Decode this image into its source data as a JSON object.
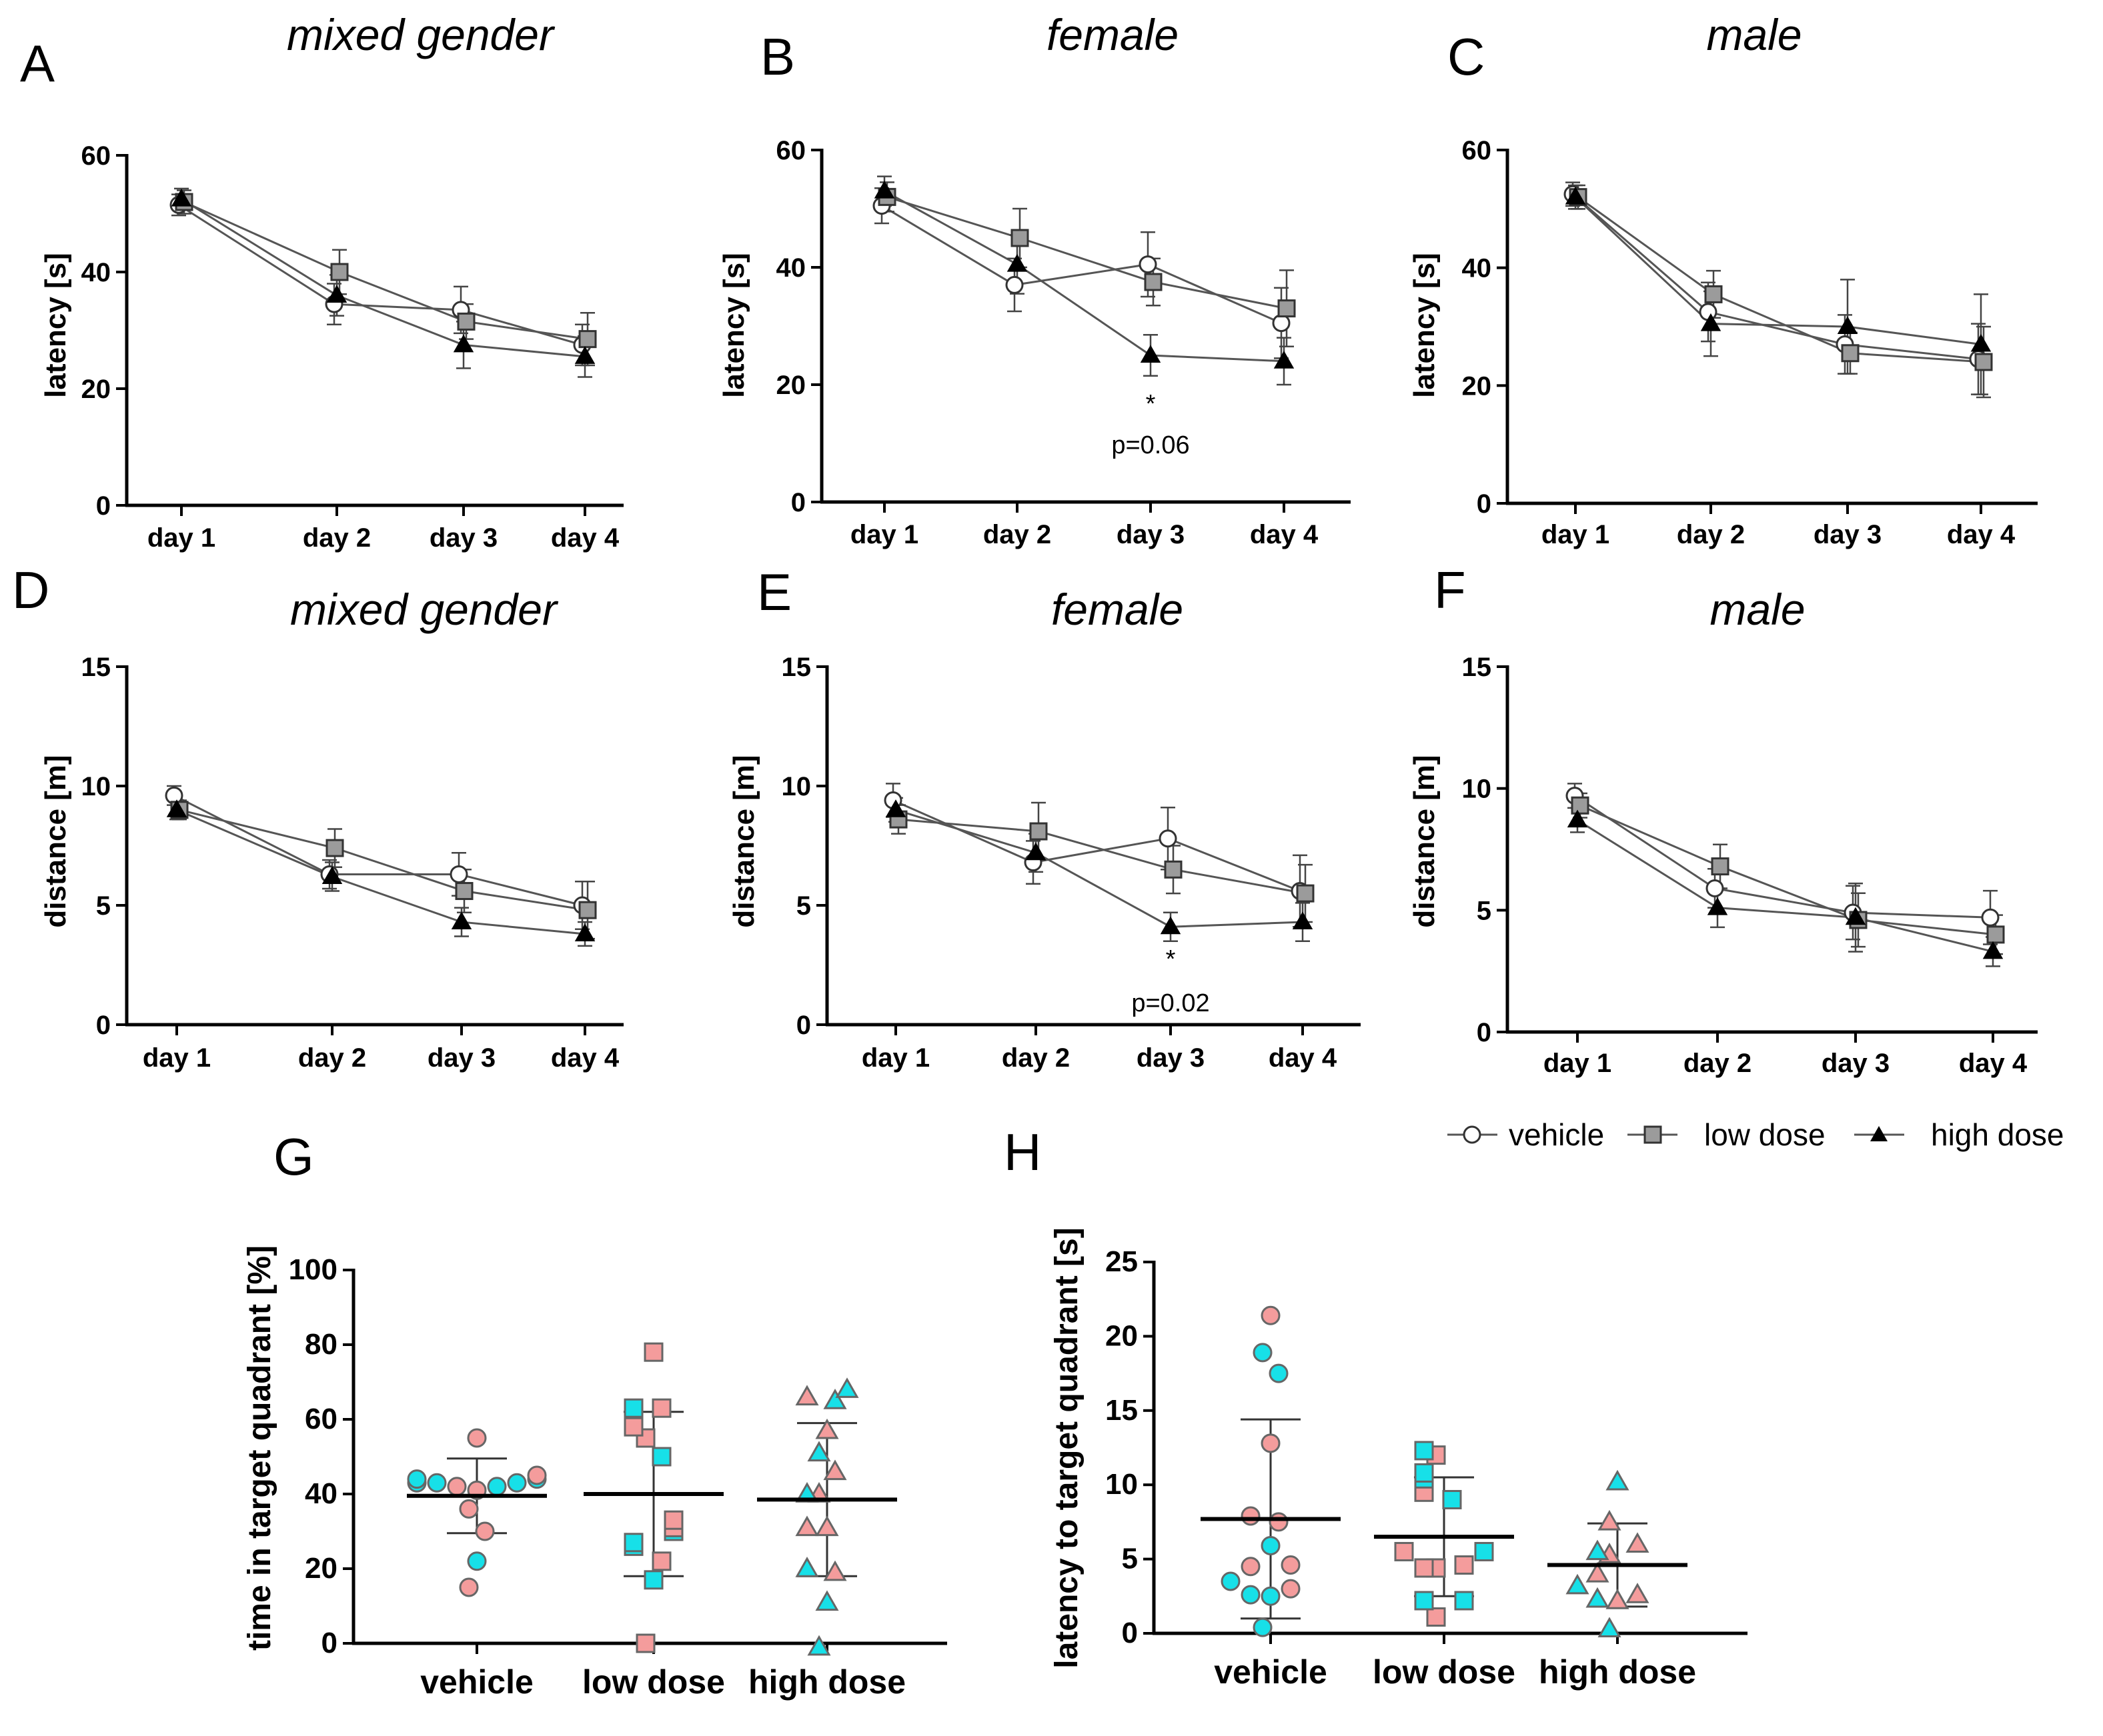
{
  "colors": {
    "vehicle_fill": "#ffffff",
    "low_fill": "#9b9b9b",
    "high_fill": "#000000",
    "line": "#555555",
    "female_fill": "#f49c9c",
    "male_fill": "#17e0e8"
  },
  "legend": {
    "vehicle": "vehicle",
    "low": "low dose",
    "high": "high dose"
  },
  "chart_data": [
    {
      "id": "A",
      "letter": "A",
      "type": "line",
      "title": "mixed gender",
      "xlabel": "",
      "ylabel": "latency [s]",
      "ylim": [
        0,
        60
      ],
      "yticks": [
        0,
        20,
        40,
        60
      ],
      "categories": [
        "day 1",
        "day 2",
        "day 3",
        "day 4"
      ],
      "series": [
        {
          "name": "vehicle",
          "values": [
            51.5,
            34.5,
            33.5,
            27.5
          ],
          "err": [
            1.8,
            3.5,
            4.0,
            3.5
          ]
        },
        {
          "name": "low dose",
          "values": [
            52.0,
            40.0,
            31.5,
            28.5
          ],
          "err": [
            2.0,
            3.8,
            3.0,
            4.5
          ]
        },
        {
          "name": "high dose",
          "values": [
            52.5,
            36.0,
            27.5,
            25.5
          ],
          "err": [
            1.8,
            3.5,
            4.0,
            3.5
          ]
        }
      ],
      "annotations": []
    },
    {
      "id": "B",
      "letter": "B",
      "type": "line",
      "title": "female",
      "xlabel": "",
      "ylabel": "latency [s]",
      "ylim": [
        0,
        60
      ],
      "yticks": [
        0,
        20,
        40,
        60
      ],
      "categories": [
        "day 1",
        "day 2",
        "day 3",
        "day 4"
      ],
      "series": [
        {
          "name": "vehicle",
          "values": [
            50.5,
            37.0,
            40.5,
            30.5
          ],
          "err": [
            3.0,
            4.5,
            5.5,
            6.0
          ]
        },
        {
          "name": "low dose",
          "values": [
            52.0,
            45.0,
            37.5,
            33.0
          ],
          "err": [
            2.5,
            5.0,
            4.0,
            6.5
          ]
        },
        {
          "name": "high dose",
          "values": [
            53.0,
            40.5,
            25.0,
            24.0
          ],
          "err": [
            2.5,
            5.0,
            3.5,
            4.0
          ]
        }
      ],
      "annotations": [
        {
          "category": "day 3",
          "star": "*",
          "text": "p=0.06"
        }
      ]
    },
    {
      "id": "C",
      "letter": "C",
      "type": "line",
      "title": "male",
      "xlabel": "",
      "ylabel": "latency [s]",
      "ylim": [
        0,
        60
      ],
      "yticks": [
        0,
        20,
        40,
        60
      ],
      "categories": [
        "day 1",
        "day 2",
        "day 3",
        "day 4"
      ],
      "series": [
        {
          "name": "vehicle",
          "values": [
            52.5,
            32.5,
            27.0,
            24.5
          ],
          "err": [
            2.0,
            5.0,
            5.0,
            6.0
          ]
        },
        {
          "name": "low dose",
          "values": [
            52.0,
            35.5,
            25.5,
            24.0
          ],
          "err": [
            2.0,
            4.0,
            3.5,
            6.0
          ]
        },
        {
          "name": "high dose",
          "values": [
            52.0,
            30.5,
            30.0,
            27.0
          ],
          "err": [
            2.0,
            5.5,
            8.0,
            8.5
          ]
        }
      ],
      "annotations": []
    },
    {
      "id": "D",
      "letter": "D",
      "type": "line",
      "title": "mixed gender",
      "xlabel": "",
      "ylabel": "distance [m]",
      "ylim": [
        0,
        15
      ],
      "yticks": [
        0,
        5,
        10,
        15
      ],
      "categories": [
        "day 1",
        "day 2",
        "day 3",
        "day 4"
      ],
      "series": [
        {
          "name": "vehicle",
          "values": [
            9.6,
            6.3,
            6.3,
            5.0
          ],
          "err": [
            0.4,
            0.6,
            0.9,
            1.0
          ]
        },
        {
          "name": "low dose",
          "values": [
            9.0,
            7.4,
            5.6,
            4.8
          ],
          "err": [
            0.4,
            0.8,
            0.9,
            1.2
          ]
        },
        {
          "name": "high dose",
          "values": [
            9.0,
            6.2,
            4.3,
            3.8
          ],
          "err": [
            0.4,
            0.6,
            0.6,
            0.5
          ]
        }
      ],
      "annotations": []
    },
    {
      "id": "E",
      "letter": "E",
      "type": "line",
      "title": "female",
      "xlabel": "",
      "ylabel": "distance [m]",
      "ylim": [
        0,
        15
      ],
      "yticks": [
        0,
        5,
        10,
        15
      ],
      "categories": [
        "day 1",
        "day 2",
        "day 3",
        "day 4"
      ],
      "series": [
        {
          "name": "vehicle",
          "values": [
            9.4,
            6.8,
            7.8,
            5.6
          ],
          "err": [
            0.7,
            0.9,
            1.3,
            1.5
          ]
        },
        {
          "name": "low dose",
          "values": [
            8.6,
            8.1,
            6.5,
            5.5
          ],
          "err": [
            0.6,
            1.2,
            1.0,
            1.2
          ]
        },
        {
          "name": "high dose",
          "values": [
            9.0,
            7.2,
            4.1,
            4.3
          ],
          "err": [
            0.5,
            0.8,
            0.6,
            0.8
          ]
        }
      ],
      "annotations": [
        {
          "category": "day 3",
          "star": "*",
          "text": "p=0.02"
        }
      ]
    },
    {
      "id": "F",
      "letter": "F",
      "type": "line",
      "title": "male",
      "xlabel": "",
      "ylabel": "distance [m]",
      "ylim": [
        0,
        15
      ],
      "yticks": [
        0,
        5,
        10,
        15
      ],
      "categories": [
        "day 1",
        "day 2",
        "day 3",
        "day 4"
      ],
      "series": [
        {
          "name": "vehicle",
          "values": [
            9.7,
            5.9,
            4.9,
            4.7
          ],
          "err": [
            0.5,
            0.8,
            1.1,
            1.1
          ]
        },
        {
          "name": "low dose",
          "values": [
            9.3,
            6.8,
            4.6,
            4.0
          ],
          "err": [
            0.5,
            0.9,
            1.1,
            0.8
          ]
        },
        {
          "name": "high dose",
          "values": [
            8.7,
            5.1,
            4.7,
            3.3
          ],
          "err": [
            0.5,
            0.8,
            1.4,
            0.6
          ]
        }
      ],
      "annotations": []
    },
    {
      "id": "G",
      "letter": "G",
      "type": "scatter",
      "title": "",
      "xlabel": "",
      "ylabel": "time in target quadrant [%]",
      "ylim": [
        0,
        100
      ],
      "yticks": [
        0,
        20,
        40,
        60,
        80,
        100
      ],
      "categories": [
        "vehicle",
        "low dose",
        "high dose"
      ],
      "groups": [
        {
          "name": "vehicle",
          "marker": "circle",
          "mean": 39.5,
          "sd": 10.0,
          "female": [
            55,
            45,
            42,
            41,
            36,
            30,
            15
          ],
          "male": [
            44,
            44,
            43,
            43,
            43,
            42,
            22
          ]
        },
        {
          "name": "low dose",
          "marker": "square",
          "mean": 40.0,
          "sd": 22.0,
          "female": [
            78,
            63,
            58,
            55,
            33,
            31,
            22,
            0
          ],
          "male": [
            63,
            50,
            30,
            27,
            26,
            17
          ]
        },
        {
          "name": "high dose",
          "marker": "triangle",
          "mean": 38.5,
          "sd": 20.5,
          "female": [
            66,
            57,
            46,
            40,
            31,
            31,
            19
          ],
          "male": [
            68,
            65,
            51,
            40,
            20,
            11,
            -1
          ]
        }
      ]
    },
    {
      "id": "H",
      "letter": "H",
      "type": "scatter",
      "title": "",
      "xlabel": "",
      "ylabel": "latency to target quadrant [s]",
      "ylim": [
        0,
        25
      ],
      "yticks": [
        0,
        5,
        10,
        15,
        20,
        25
      ],
      "categories": [
        "vehicle",
        "low dose",
        "high dose"
      ],
      "groups": [
        {
          "name": "vehicle",
          "marker": "circle",
          "mean": 7.7,
          "sd": 6.7,
          "female": [
            21.4,
            12.8,
            7.9,
            7.5,
            4.6,
            4.5,
            3.0
          ],
          "male": [
            18.9,
            17.5,
            5.9,
            3.5,
            2.6,
            2.5,
            0.4
          ]
        },
        {
          "name": "low dose",
          "marker": "square",
          "mean": 6.5,
          "sd": 4.0,
          "female": [
            12.0,
            9.5,
            5.5,
            4.6,
            4.4,
            4.4,
            1.1
          ],
          "male": [
            12.3,
            10.8,
            10.4,
            9.0,
            5.5,
            2.2,
            2.2
          ]
        },
        {
          "name": "high dose",
          "marker": "triangle",
          "mean": 4.6,
          "sd": 2.8,
          "female": [
            7.5,
            6.0,
            5.3,
            4.0,
            2.6,
            2.2
          ],
          "male": [
            10.2,
            5.5,
            3.2,
            2.3,
            0.3
          ]
        }
      ]
    }
  ]
}
